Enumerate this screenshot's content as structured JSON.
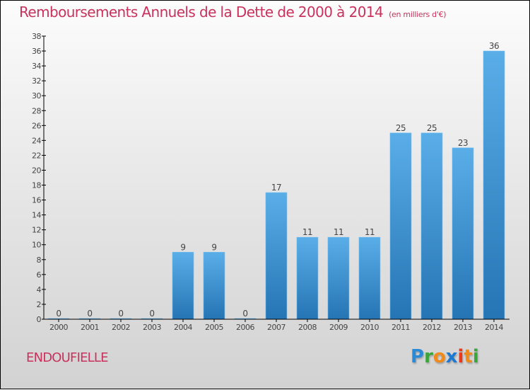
{
  "header": {
    "title": "Remboursements Annuels de la Dette de 2000 à 2014",
    "subtitle": "(en milliers d'€)"
  },
  "footer": {
    "commune": "ENDOUFIELLE",
    "logo_letters": [
      {
        "ch": "P",
        "color": "#2b8ad6"
      },
      {
        "ch": "r",
        "color": "#3aa63a"
      },
      {
        "ch": "o",
        "color": "#f08a1a"
      },
      {
        "ch": "x",
        "color": "#1f78d0"
      },
      {
        "ch": "i",
        "color": "#e8391f"
      },
      {
        "ch": "t",
        "color": "#f08a1a"
      },
      {
        "ch": "i",
        "color": "#3aa63a"
      }
    ]
  },
  "colors": {
    "title": "#c8325c",
    "bar_top": "#5aaee8",
    "bar_bottom": "#2574b4"
  },
  "chart_data": {
    "type": "bar",
    "title": "Remboursements Annuels de la Dette de 2000 à 2014",
    "subtitle": "(en milliers d'€)",
    "xlabel": "",
    "ylabel": "",
    "categories": [
      "2000",
      "2001",
      "2002",
      "2003",
      "2004",
      "2005",
      "2006",
      "2007",
      "2008",
      "2009",
      "2010",
      "2011",
      "2012",
      "2013",
      "2014"
    ],
    "values": [
      0,
      0,
      0,
      0,
      9,
      9,
      0,
      17,
      11,
      11,
      11,
      25,
      25,
      23,
      36
    ],
    "ylim": [
      0,
      38
    ],
    "yticks": [
      0,
      2,
      4,
      6,
      8,
      10,
      12,
      14,
      16,
      18,
      20,
      22,
      24,
      26,
      28,
      30,
      32,
      34,
      36,
      38
    ],
    "grid": false,
    "legend": "none",
    "data_labels": true
  }
}
